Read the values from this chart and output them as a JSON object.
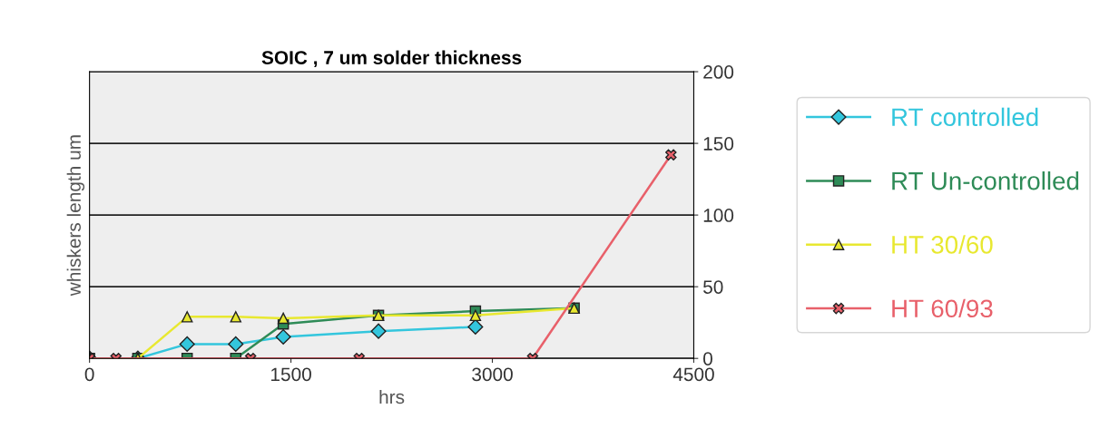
{
  "chart_data": {
    "type": "line",
    "title": "SOIC , 7 um solder thickness",
    "xlabel": "hrs",
    "ylabel": "whiskers length um",
    "xlim": [
      0,
      4500
    ],
    "xticks": [
      0,
      1500,
      3000,
      4500
    ],
    "ylim": [
      0,
      200
    ],
    "yticks": [
      0,
      50,
      100,
      150,
      200
    ],
    "grid": "y",
    "legend": "right",
    "series": [
      {
        "name": "RT controlled",
        "color": "#33c6dd",
        "marker": "diamond",
        "x": [
          0,
          360,
          727,
          1089,
          1443,
          2152,
          2874
        ],
        "values": [
          0,
          0,
          10,
          10,
          15,
          19,
          22
        ]
      },
      {
        "name": "RT Un-controlled",
        "color": "#2e8b57",
        "marker": "square",
        "x": [
          0,
          360,
          727,
          1089,
          1443,
          2152,
          2874,
          3609
        ],
        "values": [
          0,
          0,
          0,
          0,
          24,
          30,
          33,
          35
        ]
      },
      {
        "name": "HT 30/60",
        "color": "#e8e830",
        "marker": "triangle",
        "x": [
          0,
          360,
          727,
          1089,
          1443,
          2152,
          2874,
          3609
        ],
        "values": [
          0,
          0,
          29,
          29,
          28,
          30,
          30,
          35
        ]
      },
      {
        "name": "HT 60/93",
        "color": "#e8606a",
        "marker": "cross",
        "x": [
          0,
          197,
          1200,
          2008,
          3300,
          4330
        ],
        "values": [
          0,
          0,
          0,
          0,
          0,
          142
        ]
      }
    ]
  }
}
